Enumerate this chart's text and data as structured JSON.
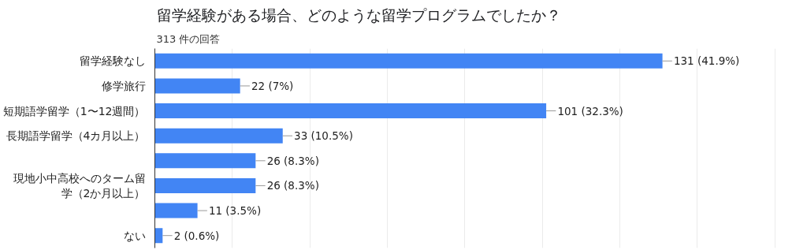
{
  "chart_data": {
    "type": "bar",
    "orientation": "horizontal",
    "title": "留学経験がある場合、どのような留学プログラムでしたか？",
    "subtitle": "313 件の回答",
    "categories": [
      "留学経験なし",
      "修学旅行",
      "短期語学留学（1〜12週間）",
      "長期語学留学（4カ月以上）",
      null,
      "現地小中高校へのターム留学（2か月以上）",
      null,
      "ない"
    ],
    "values": [
      131,
      22,
      101,
      33,
      26,
      26,
      11,
      2
    ],
    "value_labels": [
      "131 (41.9%)",
      "22 (7%)",
      "101 (32.3%)",
      "33 (10.5%)",
      "26 (8.3%)",
      "26 (8.3%)",
      "11 (3.5%)",
      "2 (0.6%)"
    ],
    "color": "#4285f4",
    "grid": "x",
    "tick_labels": "y"
  }
}
